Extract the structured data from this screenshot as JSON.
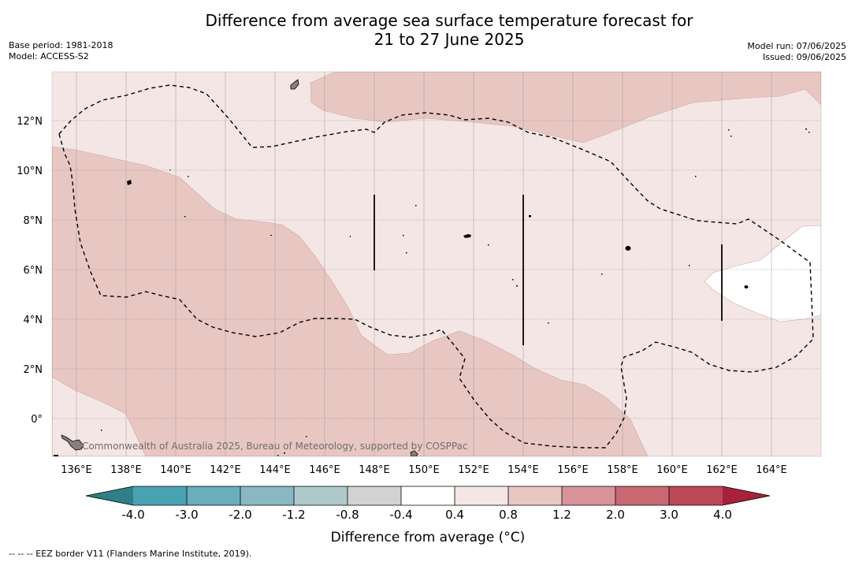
{
  "title_line1": "Difference from average sea surface temperature forecast for",
  "title_line2": "21 to 27 June 2025",
  "base_period": "Base period: 1981-2018",
  "model": "Model: ACCESS-S2",
  "model_run": "Model run: 07/06/2025",
  "issued": "Issued: 09/06/2025",
  "lon_labels": [
    "136°E",
    "138°E",
    "140°E",
    "142°E",
    "144°E",
    "146°E",
    "148°E",
    "150°E",
    "152°E",
    "154°E",
    "156°E",
    "158°E",
    "160°E",
    "162°E",
    "164°E"
  ],
  "lat_labels": [
    "12°N",
    "10°N",
    "8°N",
    "6°N",
    "4°N",
    "2°N",
    "0°"
  ],
  "copyright": "Commonwealth of Australia 2025, Bureau of Meteorology, supported by COSPPac",
  "colorbar": {
    "title": "Difference from average (°C)",
    "ticks": [
      "-4.0",
      "-3.0",
      "-2.0",
      "-1.2",
      "-0.8",
      "-0.4",
      "0.4",
      "0.8",
      "1.2",
      "2.0",
      "3.0",
      "4.0"
    ],
    "colors": [
      "#2e7f87",
      "#4aa3b3",
      "#6aadbb",
      "#89b8c2",
      "#adc9cc",
      "#d1d3d3",
      "#ffffff",
      "#f4e6e5",
      "#e8c7c2",
      "#d6939a",
      "#c96873",
      "#bc4856",
      "#a8203a"
    ]
  },
  "footnote": "--  --  -- EEZ border V11 (Flanders Marine Institute, 2019)."
}
